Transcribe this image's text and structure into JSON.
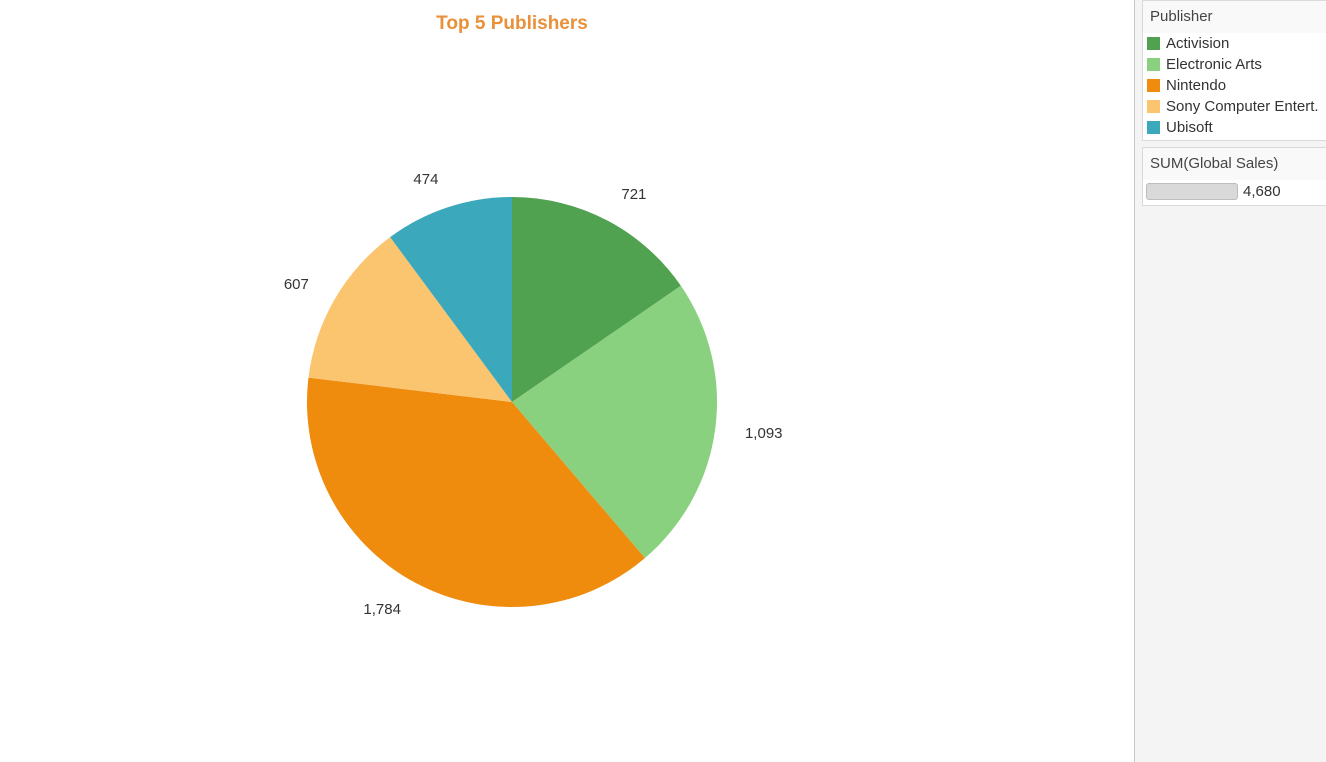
{
  "chart_data": {
    "type": "pie",
    "title": "Top 5 Publishers",
    "categories": [
      "Activision",
      "Electronic Arts",
      "Nintendo",
      "Sony Computer Entert.",
      "Ubisoft"
    ],
    "values": [
      721,
      1093,
      1784,
      607,
      474
    ],
    "value_labels": [
      "721",
      "1,093",
      "1,784",
      "607",
      "474"
    ],
    "colors": [
      "#50a150",
      "#89d17f",
      "#ef8b0d",
      "#fbc570",
      "#3ca8bc"
    ],
    "legend_position": "right"
  },
  "legend": {
    "title": "Publisher",
    "items": [
      {
        "label": "Activision",
        "color": "#50a150"
      },
      {
        "label": "Electronic Arts",
        "color": "#89d17f"
      },
      {
        "label": "Nintendo",
        "color": "#ef8b0d"
      },
      {
        "label": "Sony Computer Entert.",
        "color": "#fbc570"
      },
      {
        "label": "Ubisoft",
        "color": "#3ca8bc"
      }
    ]
  },
  "size_legend": {
    "title": "SUM(Global Sales)",
    "value": "4,680"
  }
}
